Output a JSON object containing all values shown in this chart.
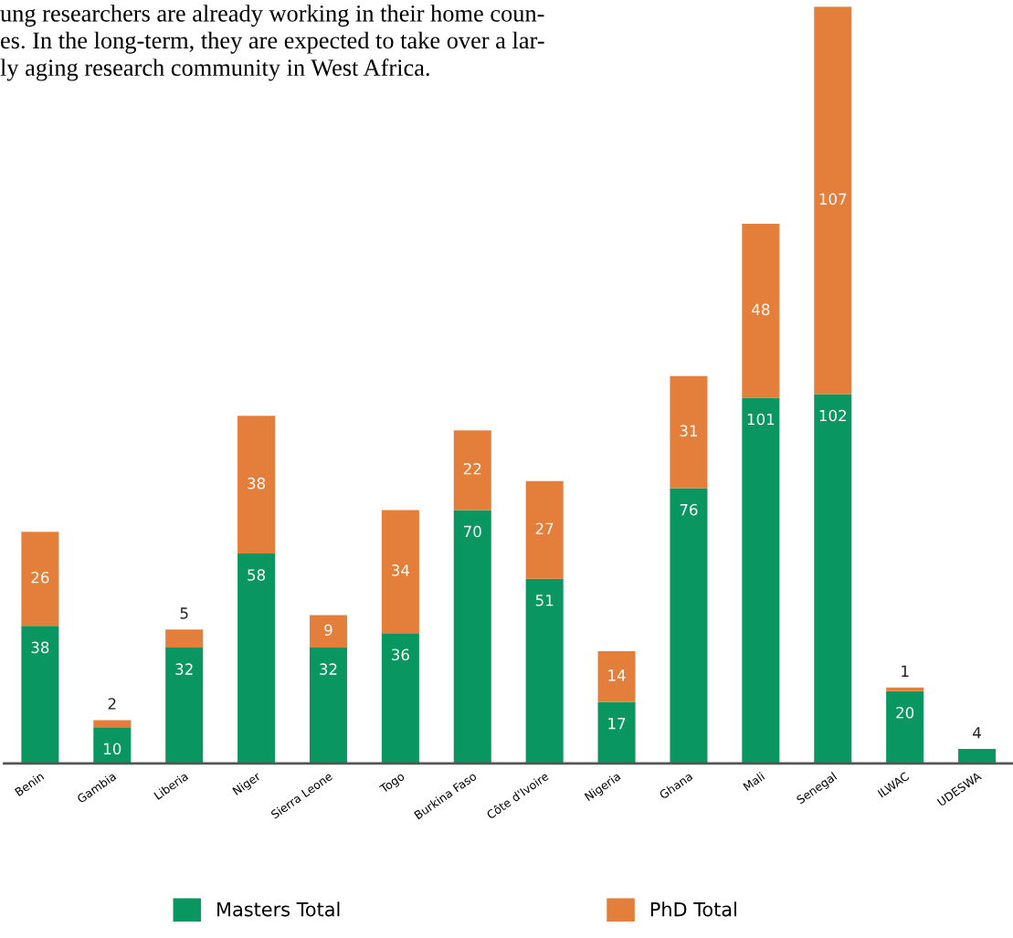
{
  "chart_data": {
    "type": "bar",
    "stacked": true,
    "data_labels": true,
    "legend": "bottom",
    "grid": false,
    "categories": [
      "Benin",
      "Gambia",
      "Liberia",
      "Niger",
      "Sierra Leone",
      "Togo",
      "Burkina Faso",
      "Côte d'Ivoire",
      "Nigeria",
      "Ghana",
      "Mali",
      "Senegal",
      "ILWAC",
      "UDESWA"
    ],
    "series": [
      {
        "name": "Masters Total",
        "color": "#0a9660",
        "values": [
          38,
          10,
          32,
          58,
          32,
          36,
          70,
          51,
          17,
          76,
          101,
          102,
          20,
          4
        ]
      },
      {
        "name": "PhD Total",
        "color": "#e47e3b",
        "values": [
          26,
          2,
          5,
          38,
          9,
          34,
          22,
          27,
          14,
          31,
          48,
          107,
          1,
          null
        ]
      }
    ],
    "annotations": [
      "ung researchers are already working in their home coun-\nes. In the long-term, they are expected to take over a lar-\nly aging research community in West Africa."
    ]
  }
}
